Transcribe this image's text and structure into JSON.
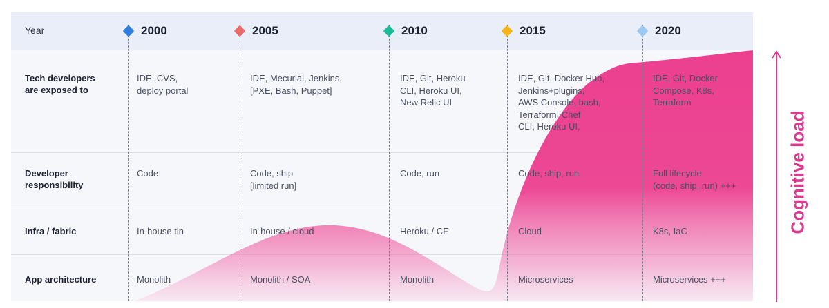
{
  "header": {
    "year_label": "Year"
  },
  "years": [
    {
      "label": "2000",
      "color": "#2f7de1"
    },
    {
      "label": "2005",
      "color": "#ec6b6b"
    },
    {
      "label": "2010",
      "color": "#1dbb98"
    },
    {
      "label": "2015",
      "color": "#f4b41a"
    },
    {
      "label": "2020",
      "color": "#9cc8f4"
    }
  ],
  "rows": [
    {
      "label": "Tech developers\nare exposed to",
      "cells": [
        "IDE, CVS,\ndeploy portal",
        "IDE, Mecurial, Jenkins,\n[PXE, Bash, Puppet]",
        "IDE, Git, Heroku\nCLI, Heroku UI,\nNew Relic UI",
        "IDE, Git, Docker Hub,\nJenkins+plugins,\nAWS Console, bash,\nTerraform, Chef\nCLI, Heroku UI,",
        "IDE, Git, Docker\nCompose, K8s,\nTerraform"
      ]
    },
    {
      "label": "Developer\nresponsibility",
      "cells": [
        "Code",
        "Code, ship\n[limited run]",
        "Code, run",
        "Code, ship, run",
        "Full lifecycle\n(code, ship, run) +++"
      ]
    },
    {
      "label": "Infra / fabric",
      "cells": [
        "In-house tin",
        "In-house / cloud",
        "Heroku / CF",
        "Cloud",
        "K8s, IaC"
      ]
    },
    {
      "label": "App architecture",
      "cells": [
        "Monolith",
        "Monolith / SOA",
        "Monolith",
        "Microservices",
        "Microservices +++"
      ]
    }
  ],
  "axis": {
    "label": "Cognitive load",
    "color": "#d93c8f"
  },
  "theme": {
    "wave_color": "#ec3f8f",
    "header_band": "#e9eef9"
  }
}
